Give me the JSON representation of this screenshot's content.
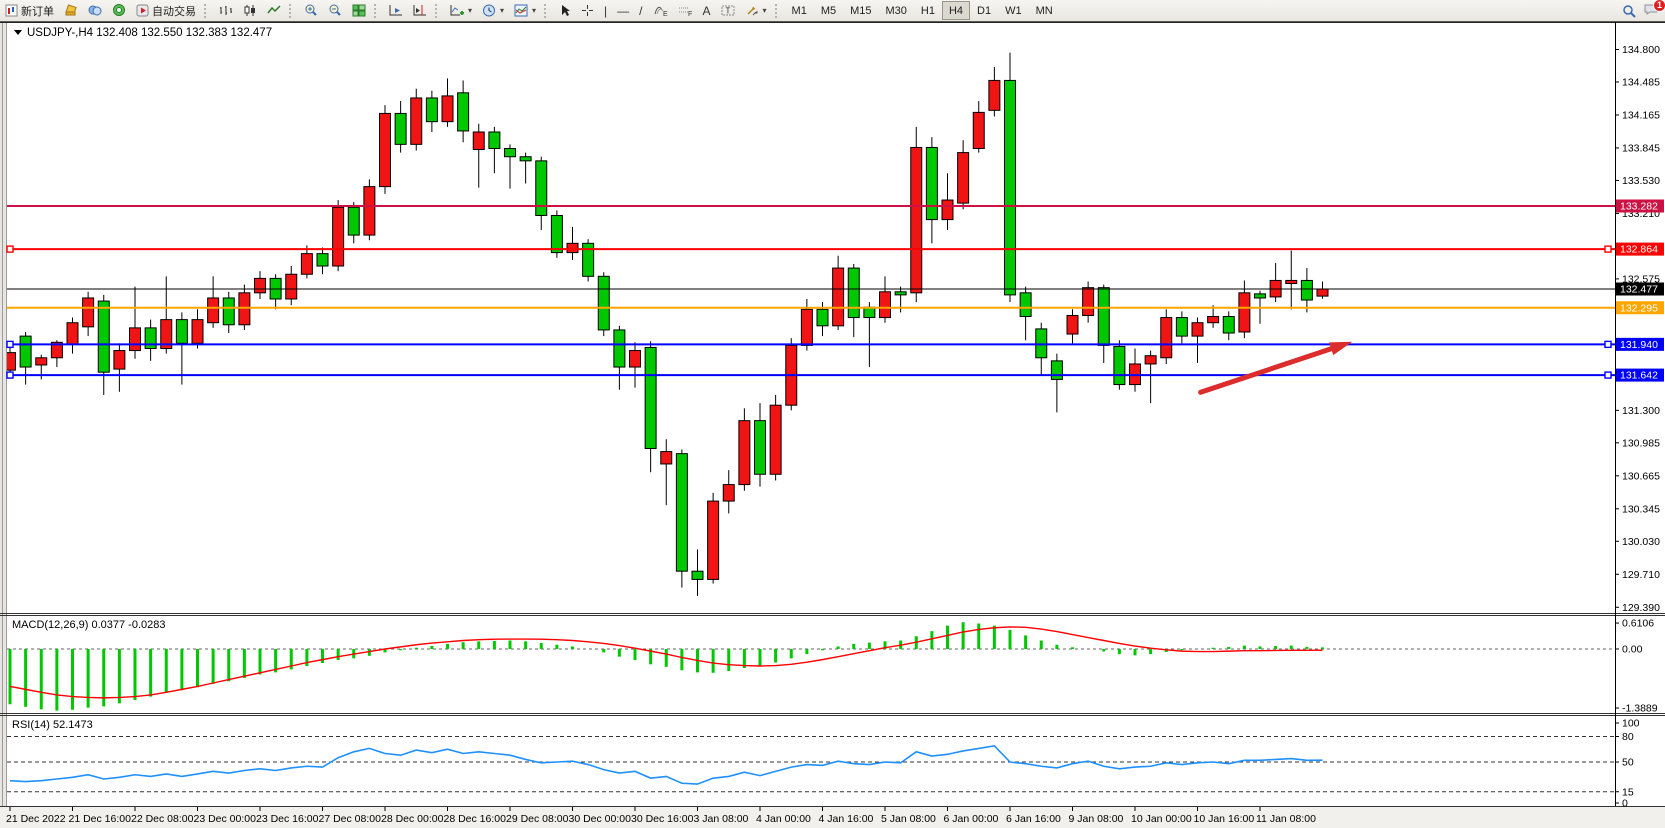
{
  "toolbar": {
    "new_order_label": "新订单",
    "autotrading_label": "自动交易",
    "timeframes": [
      "M1",
      "M5",
      "M15",
      "M30",
      "H1",
      "H4",
      "D1",
      "W1",
      "MN"
    ],
    "active_timeframe": "H4",
    "notification_badge": "1"
  },
  "window": {
    "title": "USDJPY-,H4",
    "ohlc_display": "132.408 132.550 132.383 132.477"
  },
  "chart_data": {
    "type": "candlestick+indicators",
    "symbol": "USDJPY-",
    "timeframe": "H4",
    "colors": {
      "bull": "#f01414",
      "bear": "#00c800",
      "wick": "#000000",
      "macd_hist": "#00c800",
      "macd_signal": "#ff0000",
      "rsi_line": "#1E90FF",
      "line_crimson": "#cc1144",
      "line_red": "#ff0000",
      "line_orange": "#ffa500",
      "line_blue": "#0000ff",
      "current_price_tag": "#000000",
      "arrow": "#dd2c2c"
    },
    "price_axis_ticks": [
      134.8,
      134.485,
      134.165,
      133.845,
      133.53,
      133.21,
      132.575,
      131.3,
      130.985,
      130.665,
      130.345,
      130.03,
      129.71,
      129.39
    ],
    "time_labels": [
      "21 Dec 2022",
      "21 Dec 16:00",
      "22 Dec 08:00",
      "23 Dec 00:00",
      "23 Dec 16:00",
      "27 Dec 08:00",
      "28 Dec 00:00",
      "28 Dec 16:00",
      "29 Dec 08:00",
      "30 Dec 00:00",
      "30 Dec 16:00",
      "3 Jan 08:00",
      "4 Jan 00:00",
      "4 Jan 16:00",
      "5 Jan 08:00",
      "6 Jan 00:00",
      "6 Jan 16:00",
      "9 Jan 08:00",
      "10 Jan 00:00",
      "10 Jan 16:00",
      "11 Jan 08:00"
    ],
    "candles_per_label": 4,
    "current_price": {
      "price": 132.477,
      "label": "132.477"
    },
    "hlines": [
      {
        "price": 133.282,
        "label": "133.282",
        "color": "#cc1144",
        "width": 2,
        "handles": false
      },
      {
        "price": 132.864,
        "label": "132.864",
        "color": "#ff0000",
        "width": 2,
        "handles": true
      },
      {
        "price": 132.295,
        "label": "132.295",
        "color": "#ffa500",
        "width": 2,
        "handles": false
      },
      {
        "price": 131.94,
        "label": "131.940",
        "color": "#0000ff",
        "width": 2,
        "handles": true
      },
      {
        "price": 131.642,
        "label": "131.642",
        "color": "#0000ff",
        "width": 2,
        "handles": true
      }
    ],
    "arrow_annotation": {
      "from_index": 76.2,
      "from_price": 131.475,
      "to_index": 85.3,
      "to_price": 131.935
    },
    "candles": [
      [
        131.69,
        131.92,
        131.62,
        131.86
      ],
      [
        132.02,
        132.06,
        131.55,
        131.72
      ],
      [
        131.74,
        131.84,
        131.6,
        131.81
      ],
      [
        131.81,
        131.98,
        131.72,
        131.96
      ],
      [
        131.94,
        132.2,
        131.85,
        132.15
      ],
      [
        132.11,
        132.45,
        132.02,
        132.39
      ],
      [
        132.36,
        132.42,
        131.45,
        131.67
      ],
      [
        131.7,
        131.95,
        131.48,
        131.88
      ],
      [
        131.88,
        132.5,
        131.8,
        132.1
      ],
      [
        132.1,
        132.18,
        131.78,
        131.9
      ],
      [
        131.9,
        132.6,
        131.85,
        132.18
      ],
      [
        132.18,
        132.25,
        131.55,
        131.95
      ],
      [
        131.95,
        132.28,
        131.9,
        132.18
      ],
      [
        132.15,
        132.6,
        132.1,
        132.39
      ],
      [
        132.39,
        132.45,
        132.05,
        132.13
      ],
      [
        132.13,
        132.52,
        132.08,
        132.44
      ],
      [
        132.44,
        132.65,
        132.38,
        132.58
      ],
      [
        132.58,
        132.62,
        132.28,
        132.38
      ],
      [
        132.38,
        132.7,
        132.32,
        132.62
      ],
      [
        132.62,
        132.9,
        132.58,
        132.82
      ],
      [
        132.82,
        132.88,
        132.62,
        132.7
      ],
      [
        132.7,
        133.34,
        132.65,
        133.27
      ],
      [
        133.27,
        133.32,
        132.92,
        133.0
      ],
      [
        133.0,
        133.54,
        132.95,
        133.47
      ],
      [
        133.47,
        134.26,
        133.4,
        134.18
      ],
      [
        134.18,
        134.3,
        133.8,
        133.88
      ],
      [
        133.88,
        134.42,
        133.82,
        134.33
      ],
      [
        134.33,
        134.4,
        134.0,
        134.1
      ],
      [
        134.1,
        134.52,
        134.05,
        134.35
      ],
      [
        134.38,
        134.5,
        133.9,
        134.01
      ],
      [
        133.83,
        134.08,
        133.46,
        134.0
      ],
      [
        134.0,
        134.05,
        133.6,
        133.84
      ],
      [
        133.84,
        133.88,
        133.45,
        133.76
      ],
      [
        133.76,
        133.8,
        133.5,
        133.72
      ],
      [
        133.72,
        133.76,
        133.05,
        133.19
      ],
      [
        133.19,
        133.24,
        132.78,
        132.83
      ],
      [
        132.83,
        133.08,
        132.76,
        132.92
      ],
      [
        132.92,
        132.96,
        132.55,
        132.6
      ],
      [
        132.6,
        132.64,
        132.02,
        132.08
      ],
      [
        132.08,
        132.12,
        131.5,
        131.72
      ],
      [
        131.72,
        131.96,
        131.52,
        131.88
      ],
      [
        131.91,
        131.97,
        130.7,
        130.93
      ],
      [
        130.78,
        131.02,
        130.38,
        130.9
      ],
      [
        130.88,
        130.92,
        129.58,
        129.74
      ],
      [
        129.74,
        129.95,
        129.5,
        129.66
      ],
      [
        129.66,
        130.5,
        129.62,
        130.42
      ],
      [
        130.42,
        130.72,
        130.3,
        130.58
      ],
      [
        130.58,
        131.32,
        130.52,
        131.2
      ],
      [
        131.2,
        131.37,
        130.56,
        130.68
      ],
      [
        130.68,
        131.45,
        130.62,
        131.35
      ],
      [
        131.35,
        132.0,
        131.3,
        131.93
      ],
      [
        131.93,
        132.38,
        131.88,
        132.28
      ],
      [
        132.28,
        132.35,
        132.02,
        132.12
      ],
      [
        132.12,
        132.8,
        132.08,
        132.68
      ],
      [
        132.68,
        132.72,
        132.01,
        132.2
      ],
      [
        132.3,
        132.35,
        131.72,
        132.2
      ],
      [
        132.2,
        132.6,
        132.15,
        132.45
      ],
      [
        132.45,
        132.5,
        132.25,
        132.42
      ],
      [
        132.44,
        134.05,
        132.35,
        133.85
      ],
      [
        133.85,
        133.95,
        132.92,
        133.15
      ],
      [
        133.15,
        133.6,
        133.05,
        133.34
      ],
      [
        133.31,
        133.92,
        133.25,
        133.8
      ],
      [
        133.84,
        134.3,
        133.8,
        134.19
      ],
      [
        134.21,
        134.63,
        134.15,
        134.5
      ],
      [
        134.5,
        134.77,
        132.35,
        132.42
      ],
      [
        132.44,
        132.5,
        131.98,
        132.21
      ],
      [
        132.09,
        132.15,
        131.65,
        131.81
      ],
      [
        131.78,
        131.85,
        131.28,
        131.6
      ],
      [
        132.04,
        132.28,
        131.95,
        132.22
      ],
      [
        132.22,
        132.55,
        132.15,
        132.49
      ],
      [
        132.49,
        132.52,
        131.76,
        131.93
      ],
      [
        131.92,
        131.98,
        131.5,
        131.55
      ],
      [
        131.55,
        131.9,
        131.48,
        131.75
      ],
      [
        131.75,
        131.88,
        131.37,
        131.83
      ],
      [
        131.81,
        132.28,
        131.75,
        132.2
      ],
      [
        132.2,
        132.26,
        131.95,
        132.02
      ],
      [
        132.02,
        132.2,
        131.76,
        132.15
      ],
      [
        132.15,
        132.32,
        132.1,
        132.21
      ],
      [
        132.21,
        132.26,
        131.98,
        132.05
      ],
      [
        132.06,
        132.56,
        132.0,
        132.44
      ],
      [
        132.43,
        132.46,
        132.14,
        132.39
      ],
      [
        132.4,
        132.73,
        132.35,
        132.56
      ],
      [
        132.53,
        132.85,
        132.28,
        132.56
      ],
      [
        132.56,
        132.68,
        132.25,
        132.37
      ],
      [
        132.408,
        132.55,
        132.383,
        132.477
      ]
    ],
    "macd": {
      "label": "MACD(12,26,9)",
      "display": "MACD(12,26,9) 0.0377 -0.0283",
      "value": 0.0377,
      "signal_value": -0.0283,
      "axis_ticks": [
        0.6106,
        0.0,
        -1.3889
      ],
      "hist": [
        -1.3,
        -1.36,
        -1.42,
        -1.45,
        -1.43,
        -1.38,
        -1.35,
        -1.28,
        -1.2,
        -1.12,
        -1.03,
        -0.97,
        -0.9,
        -0.82,
        -0.76,
        -0.68,
        -0.6,
        -0.55,
        -0.48,
        -0.4,
        -0.33,
        -0.26,
        -0.22,
        -0.16,
        -0.08,
        -0.03,
        0.03,
        0.07,
        0.12,
        0.16,
        0.18,
        0.19,
        0.2,
        0.18,
        0.14,
        0.1,
        0.06,
        0.0,
        -0.08,
        -0.18,
        -0.26,
        -0.36,
        -0.42,
        -0.5,
        -0.55,
        -0.56,
        -0.52,
        -0.45,
        -0.4,
        -0.32,
        -0.22,
        -0.12,
        -0.03,
        0.06,
        0.12,
        0.15,
        0.18,
        0.2,
        0.3,
        0.42,
        0.55,
        0.63,
        0.6,
        0.55,
        0.45,
        0.32,
        0.2,
        0.1,
        0.04,
        0.0,
        -0.06,
        -0.12,
        -0.15,
        -0.12,
        -0.07,
        -0.03,
        0.0,
        0.03,
        0.05,
        0.08,
        0.06,
        0.07,
        0.08,
        0.05,
        0.0377
      ],
      "signal": [
        -0.88,
        -0.95,
        -1.02,
        -1.08,
        -1.12,
        -1.14,
        -1.15,
        -1.14,
        -1.12,
        -1.08,
        -1.02,
        -0.95,
        -0.88,
        -0.8,
        -0.72,
        -0.64,
        -0.56,
        -0.48,
        -0.4,
        -0.32,
        -0.25,
        -0.18,
        -0.12,
        -0.06,
        0.0,
        0.05,
        0.1,
        0.14,
        0.17,
        0.2,
        0.22,
        0.23,
        0.235,
        0.235,
        0.23,
        0.22,
        0.2,
        0.17,
        0.13,
        0.08,
        0.02,
        -0.05,
        -0.12,
        -0.2,
        -0.27,
        -0.33,
        -0.37,
        -0.39,
        -0.4,
        -0.39,
        -0.36,
        -0.31,
        -0.25,
        -0.18,
        -0.11,
        -0.04,
        0.03,
        0.09,
        0.16,
        0.24,
        0.32,
        0.4,
        0.46,
        0.5,
        0.52,
        0.51,
        0.47,
        0.41,
        0.34,
        0.27,
        0.2,
        0.13,
        0.07,
        0.02,
        -0.02,
        -0.05,
        -0.06,
        -0.06,
        -0.05,
        -0.04,
        -0.04,
        -0.035,
        -0.03,
        -0.03,
        -0.0283
      ]
    },
    "rsi": {
      "label": "RSI(14)",
      "display": "RSI(14) 52.1473",
      "value": 52.1473,
      "levels": [
        80,
        50,
        15
      ],
      "axis_labels": [
        100,
        80,
        50,
        15,
        0
      ],
      "values": [
        28,
        27,
        28,
        30,
        32,
        35,
        30,
        32,
        35,
        33,
        36,
        33,
        36,
        39,
        37,
        40,
        42,
        40,
        43,
        45,
        44,
        55,
        62,
        66,
        60,
        58,
        64,
        61,
        65,
        60,
        62,
        60,
        58,
        53,
        49,
        50,
        51,
        47,
        41,
        37,
        39,
        31,
        33,
        25,
        24,
        31,
        33,
        38,
        34,
        39,
        44,
        47,
        46,
        51,
        48,
        47,
        50,
        49,
        62,
        57,
        59,
        63,
        66,
        69,
        50,
        48,
        45,
        43,
        48,
        51,
        45,
        42,
        44,
        45,
        49,
        47,
        49,
        50,
        48,
        52,
        52,
        53,
        54,
        52,
        52.15
      ]
    }
  }
}
